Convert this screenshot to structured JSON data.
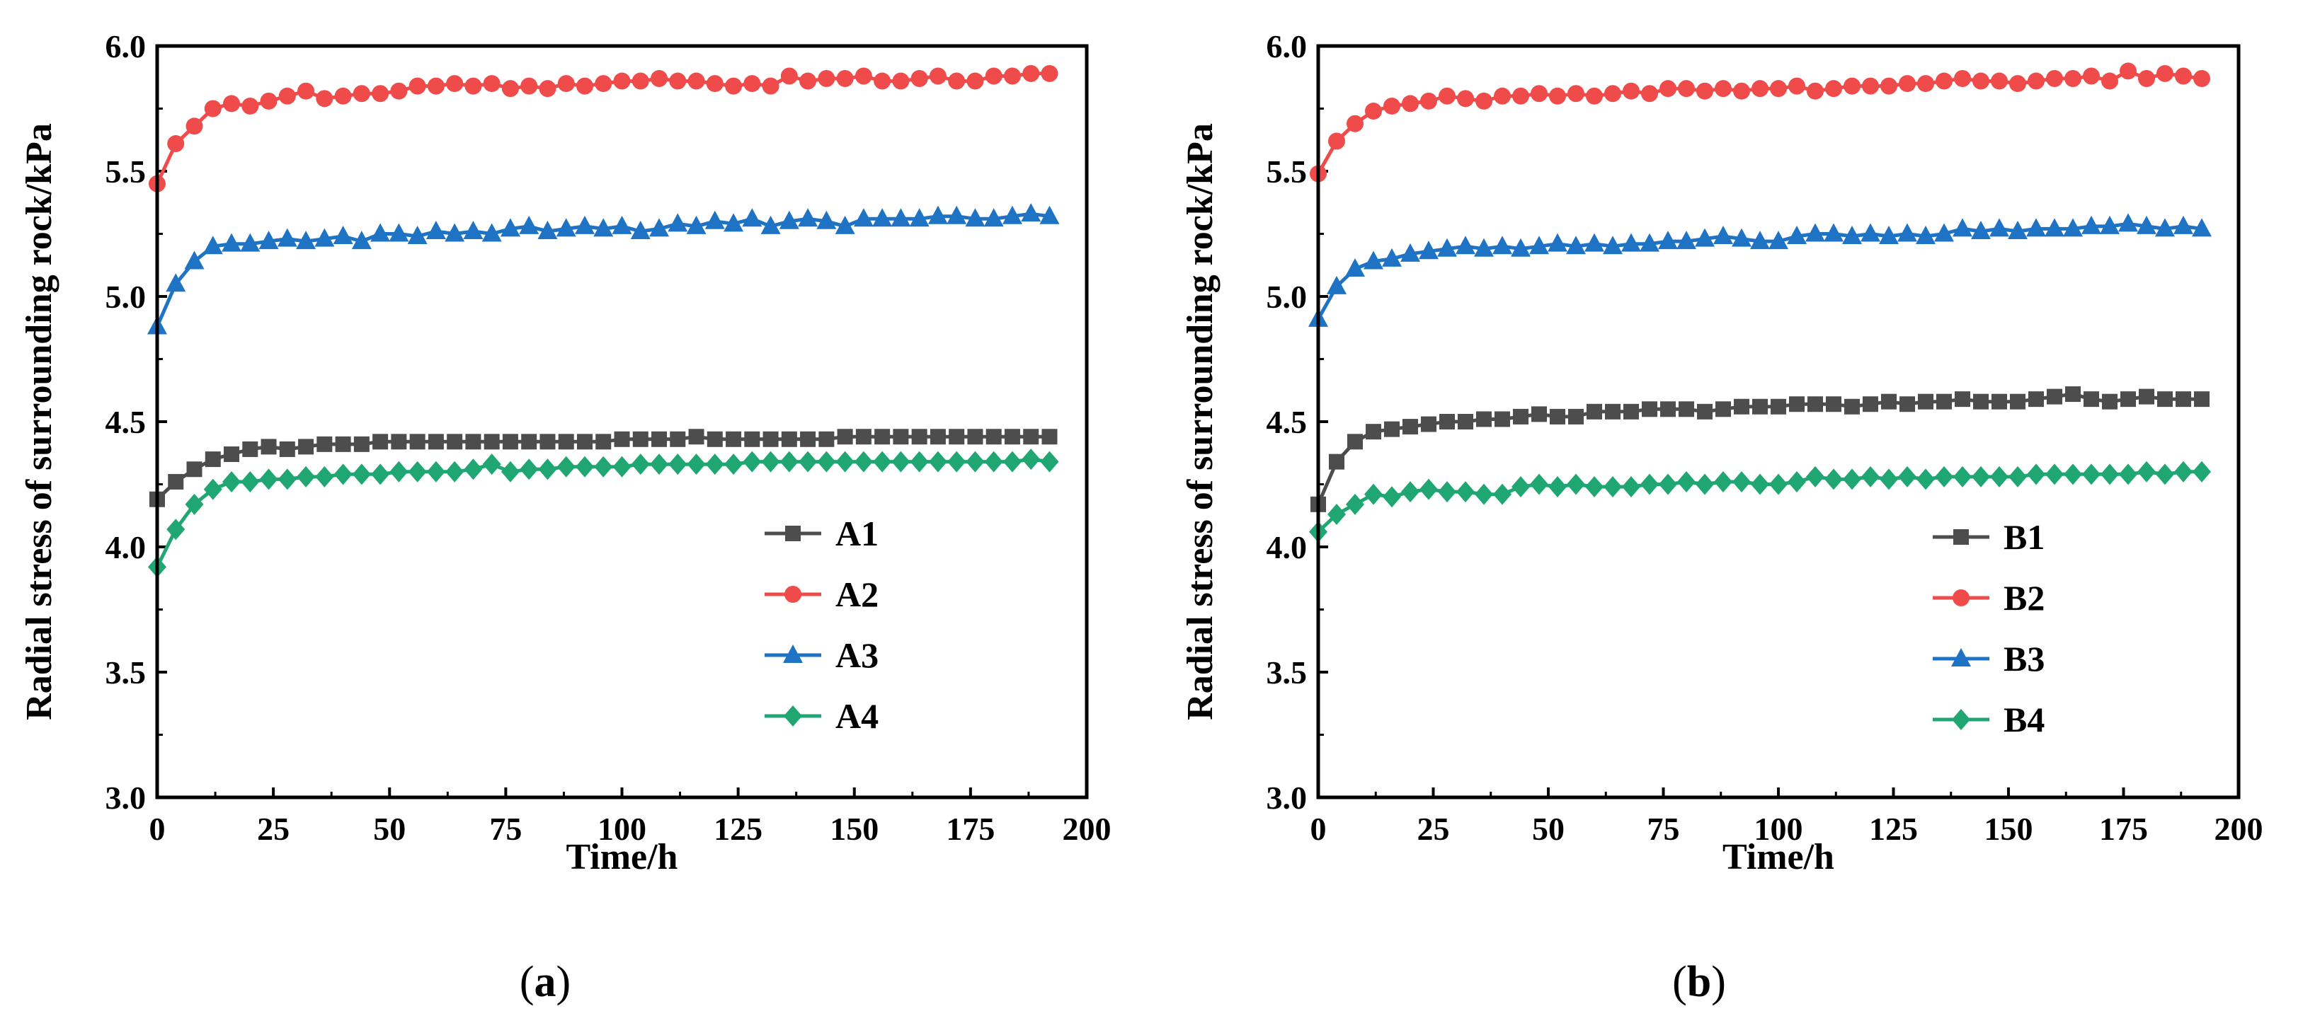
{
  "colors": {
    "s1": "#4d4d4d",
    "s2": "#ef4b4b",
    "s3": "#1f73c4",
    "s4": "#1fa672"
  },
  "chart_data": [
    {
      "type": "line",
      "caption": {
        "open": "(",
        "letter": "a",
        "close": ")"
      },
      "xlabel": "Time/h",
      "ylabel": "Radial stress of surrounding rock/kPa",
      "xlim": [
        0,
        200
      ],
      "ylim": [
        3.0,
        6.0
      ],
      "xticks": [
        "0",
        "25",
        "50",
        "75",
        "100",
        "125",
        "150",
        "175",
        "200"
      ],
      "yticks": [
        "3.0",
        "3.5",
        "4.0",
        "4.5",
        "5.0",
        "5.5",
        "6.0"
      ],
      "legend_position": "lower-right",
      "x": [
        0,
        4,
        8,
        12,
        16,
        20,
        24,
        28,
        32,
        36,
        40,
        44,
        48,
        52,
        56,
        60,
        64,
        68,
        72,
        76,
        80,
        84,
        88,
        92,
        96,
        100,
        104,
        108,
        112,
        116,
        120,
        124,
        128,
        132,
        136,
        140,
        144,
        148,
        152,
        156,
        160,
        164,
        168,
        172,
        176,
        180,
        184,
        188,
        192
      ],
      "series": [
        {
          "name": "A1",
          "color_key": "s1",
          "marker": "square",
          "values": [
            4.19,
            4.26,
            4.31,
            4.35,
            4.37,
            4.39,
            4.4,
            4.39,
            4.4,
            4.41,
            4.41,
            4.41,
            4.42,
            4.42,
            4.42,
            4.42,
            4.42,
            4.42,
            4.42,
            4.42,
            4.42,
            4.42,
            4.42,
            4.42,
            4.42,
            4.43,
            4.43,
            4.43,
            4.43,
            4.44,
            4.43,
            4.43,
            4.43,
            4.43,
            4.43,
            4.43,
            4.43,
            4.44,
            4.44,
            4.44,
            4.44,
            4.44,
            4.44,
            4.44,
            4.44,
            4.44,
            4.44,
            4.44,
            4.44
          ]
        },
        {
          "name": "A2",
          "color_key": "s2",
          "marker": "circle",
          "values": [
            5.45,
            5.61,
            5.68,
            5.75,
            5.77,
            5.76,
            5.78,
            5.8,
            5.82,
            5.79,
            5.8,
            5.81,
            5.81,
            5.82,
            5.84,
            5.84,
            5.85,
            5.84,
            5.85,
            5.83,
            5.84,
            5.83,
            5.85,
            5.84,
            5.85,
            5.86,
            5.86,
            5.87,
            5.86,
            5.86,
            5.85,
            5.84,
            5.85,
            5.84,
            5.88,
            5.86,
            5.87,
            5.87,
            5.88,
            5.86,
            5.86,
            5.87,
            5.88,
            5.86,
            5.86,
            5.88,
            5.88,
            5.89,
            5.89
          ]
        },
        {
          "name": "A3",
          "color_key": "s3",
          "marker": "triangle",
          "values": [
            4.88,
            5.05,
            5.14,
            5.2,
            5.21,
            5.21,
            5.22,
            5.23,
            5.22,
            5.23,
            5.24,
            5.22,
            5.25,
            5.25,
            5.24,
            5.26,
            5.25,
            5.26,
            5.25,
            5.27,
            5.28,
            5.26,
            5.27,
            5.28,
            5.27,
            5.28,
            5.26,
            5.27,
            5.29,
            5.28,
            5.3,
            5.29,
            5.31,
            5.28,
            5.3,
            5.31,
            5.3,
            5.28,
            5.31,
            5.31,
            5.31,
            5.31,
            5.32,
            5.32,
            5.31,
            5.31,
            5.32,
            5.33,
            5.32
          ]
        },
        {
          "name": "A4",
          "color_key": "s4",
          "marker": "diamond",
          "values": [
            3.92,
            4.07,
            4.17,
            4.23,
            4.26,
            4.26,
            4.27,
            4.27,
            4.28,
            4.28,
            4.29,
            4.29,
            4.29,
            4.3,
            4.3,
            4.3,
            4.3,
            4.31,
            4.33,
            4.3,
            4.31,
            4.31,
            4.32,
            4.32,
            4.32,
            4.32,
            4.33,
            4.33,
            4.33,
            4.33,
            4.33,
            4.33,
            4.34,
            4.34,
            4.34,
            4.34,
            4.34,
            4.34,
            4.34,
            4.34,
            4.34,
            4.34,
            4.34,
            4.34,
            4.34,
            4.34,
            4.34,
            4.35,
            4.34
          ]
        }
      ]
    },
    {
      "type": "line",
      "caption": {
        "open": "(",
        "letter": "b",
        "close": ")"
      },
      "xlabel": "Time/h",
      "ylabel": "Radial stress of surrounding rock/kPa",
      "xlim": [
        0,
        200
      ],
      "ylim": [
        3.0,
        6.0
      ],
      "xticks": [
        "0",
        "25",
        "50",
        "75",
        "100",
        "125",
        "150",
        "175",
        "200"
      ],
      "yticks": [
        "3.0",
        "3.5",
        "4.0",
        "4.5",
        "5.0",
        "5.5",
        "6.0"
      ],
      "legend_position": "lower-right",
      "x": [
        0,
        4,
        8,
        12,
        16,
        20,
        24,
        28,
        32,
        36,
        40,
        44,
        48,
        52,
        56,
        60,
        64,
        68,
        72,
        76,
        80,
        84,
        88,
        92,
        96,
        100,
        104,
        108,
        112,
        116,
        120,
        124,
        128,
        132,
        136,
        140,
        144,
        148,
        152,
        156,
        160,
        164,
        168,
        172,
        176,
        180,
        184,
        188,
        192
      ],
      "series": [
        {
          "name": "B1",
          "color_key": "s1",
          "marker": "square",
          "values": [
            4.17,
            4.34,
            4.42,
            4.46,
            4.47,
            4.48,
            4.49,
            4.5,
            4.5,
            4.51,
            4.51,
            4.52,
            4.53,
            4.52,
            4.52,
            4.54,
            4.54,
            4.54,
            4.55,
            4.55,
            4.55,
            4.54,
            4.55,
            4.56,
            4.56,
            4.56,
            4.57,
            4.57,
            4.57,
            4.56,
            4.57,
            4.58,
            4.57,
            4.58,
            4.58,
            4.59,
            4.58,
            4.58,
            4.58,
            4.59,
            4.6,
            4.61,
            4.59,
            4.58,
            4.59,
            4.6,
            4.59,
            4.59,
            4.59
          ]
        },
        {
          "name": "B2",
          "color_key": "s2",
          "marker": "circle",
          "values": [
            5.49,
            5.62,
            5.69,
            5.74,
            5.76,
            5.77,
            5.78,
            5.8,
            5.79,
            5.78,
            5.8,
            5.8,
            5.81,
            5.8,
            5.81,
            5.8,
            5.81,
            5.82,
            5.81,
            5.83,
            5.83,
            5.82,
            5.83,
            5.82,
            5.83,
            5.83,
            5.84,
            5.82,
            5.83,
            5.84,
            5.84,
            5.84,
            5.85,
            5.85,
            5.86,
            5.87,
            5.86,
            5.86,
            5.85,
            5.86,
            5.87,
            5.87,
            5.88,
            5.86,
            5.9,
            5.87,
            5.89,
            5.88,
            5.87
          ]
        },
        {
          "name": "B3",
          "color_key": "s3",
          "marker": "triangle",
          "values": [
            4.91,
            5.04,
            5.11,
            5.14,
            5.15,
            5.17,
            5.18,
            5.19,
            5.2,
            5.19,
            5.2,
            5.19,
            5.2,
            5.21,
            5.2,
            5.21,
            5.2,
            5.21,
            5.21,
            5.22,
            5.22,
            5.23,
            5.24,
            5.23,
            5.22,
            5.22,
            5.24,
            5.25,
            5.25,
            5.24,
            5.25,
            5.24,
            5.25,
            5.24,
            5.25,
            5.27,
            5.26,
            5.27,
            5.26,
            5.27,
            5.27,
            5.27,
            5.28,
            5.28,
            5.29,
            5.28,
            5.27,
            5.28,
            5.27
          ]
        },
        {
          "name": "B4",
          "color_key": "s4",
          "marker": "diamond",
          "values": [
            4.06,
            4.13,
            4.17,
            4.21,
            4.2,
            4.22,
            4.23,
            4.22,
            4.22,
            4.21,
            4.21,
            4.24,
            4.25,
            4.24,
            4.25,
            4.24,
            4.24,
            4.24,
            4.25,
            4.25,
            4.26,
            4.25,
            4.26,
            4.26,
            4.25,
            4.25,
            4.26,
            4.28,
            4.27,
            4.27,
            4.28,
            4.27,
            4.28,
            4.27,
            4.28,
            4.28,
            4.28,
            4.28,
            4.28,
            4.29,
            4.29,
            4.29,
            4.29,
            4.29,
            4.29,
            4.3,
            4.29,
            4.3,
            4.3
          ]
        }
      ]
    }
  ]
}
